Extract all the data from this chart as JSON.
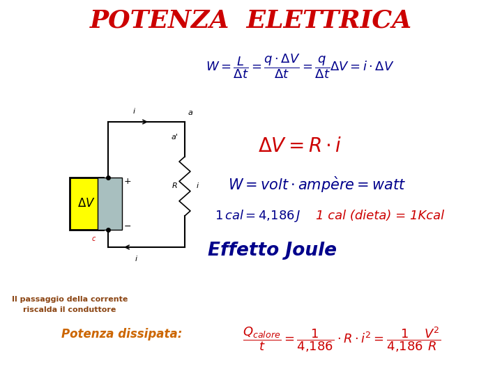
{
  "background_color": "#ffffff",
  "title": "POTENZA  ELETTRICA",
  "title_color": "#cc0000",
  "title_fontsize": 26,
  "formula1_color": "#00008B",
  "formula1_fontsize": 13,
  "formula2_fontsize": 20,
  "formula3_fontsize": 15,
  "formula4_fontsize": 13,
  "formula4b": "1 cal (dieta) = 1Kcal",
  "formula4b_color": "#cc0000",
  "formula4b_fontsize": 13,
  "effetto_joule": "Effetto Joule",
  "effetto_joule_color": "#00008B",
  "effetto_joule_fontsize": 19,
  "small_text1": "Il passaggio della corrente",
  "small_text2": "riscalda il conduttore",
  "small_text_color": "#8B4513",
  "small_text_fontsize": 8,
  "potenza_text": "Potenza dissipata:",
  "potenza_color": "#cc6600",
  "potenza_fontsize": 12,
  "formula5_color": "#cc0000",
  "formula5_fontsize": 13,
  "formula3_color": "#00008B",
  "formula4_color": "#00008B"
}
